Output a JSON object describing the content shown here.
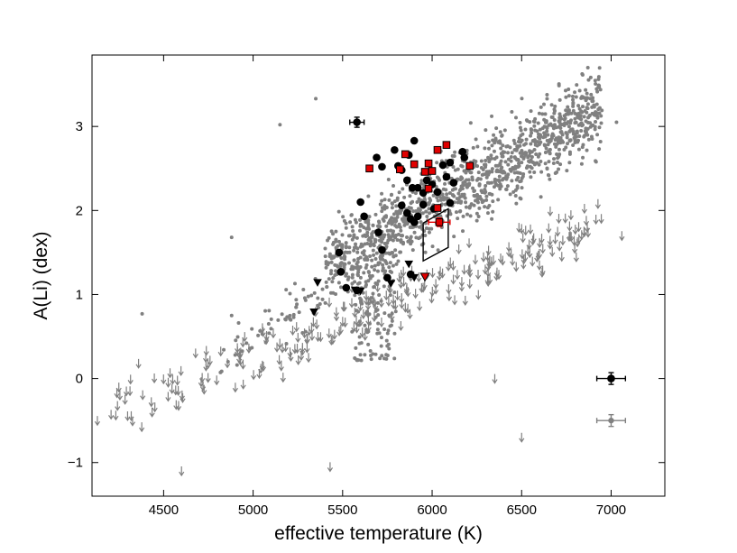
{
  "chart_data": {
    "type": "scatter",
    "title": "",
    "xlabel": "effective temperature (K)",
    "ylabel": "A(Li) (dex)",
    "xlim": [
      4100,
      7300
    ],
    "ylim": [
      -1.4,
      3.85
    ],
    "grid": false,
    "legend": "none",
    "xticks": [
      4500,
      5000,
      5500,
      6000,
      6500,
      7000
    ],
    "xtick_labels": [
      "4500",
      "5000",
      "5500",
      "6000",
      "6500",
      "7000"
    ],
    "yticks": [
      -1,
      0,
      1,
      2,
      3
    ],
    "ytick_labels": [
      "−1",
      "0",
      "1",
      "2",
      "3"
    ],
    "colors": {
      "field": "#808080",
      "black": "#000000",
      "red": "#e00000"
    },
    "series": [
      {
        "marker": "black-circle",
        "points": [
          [
            5690,
            2.63
          ],
          [
            5720,
            2.52
          ],
          [
            5790,
            2.72
          ],
          [
            5810,
            2.53
          ],
          [
            5830,
            2.48
          ],
          [
            5870,
            2.66
          ],
          [
            5900,
            2.83
          ],
          [
            5860,
            2.36
          ],
          [
            5890,
            2.27
          ],
          [
            5920,
            2.27
          ],
          [
            5950,
            2.21
          ],
          [
            5970,
            2.36
          ],
          [
            6000,
            2.31
          ],
          [
            6030,
            2.22
          ],
          [
            6060,
            2.54
          ],
          [
            6080,
            2.4
          ],
          [
            6100,
            2.57
          ],
          [
            6120,
            2.33
          ],
          [
            6180,
            2.63
          ],
          [
            6170,
            2.7
          ],
          [
            5600,
            2.1
          ],
          [
            5620,
            1.93
          ],
          [
            5700,
            1.74
          ],
          [
            5720,
            1.53
          ],
          [
            5830,
            2.06
          ],
          [
            5860,
            1.97
          ],
          [
            5880,
            1.9
          ],
          [
            5900,
            1.86
          ],
          [
            5920,
            1.93
          ],
          [
            5950,
            2.07
          ],
          [
            6010,
            2.02
          ],
          [
            6100,
            2.09
          ],
          [
            5480,
            1.5
          ],
          [
            5490,
            1.27
          ],
          [
            5520,
            1.08
          ],
          [
            5580,
            1.05
          ],
          [
            5750,
            1.2
          ],
          [
            5880,
            1.24
          ]
        ]
      },
      {
        "marker": "black-triangle-down",
        "points": [
          [
            5360,
            1.14
          ],
          [
            5340,
            0.79
          ],
          [
            5570,
            1.05
          ],
          [
            5600,
            1.04
          ],
          [
            5770,
            1.13
          ],
          [
            5870,
            1.36
          ],
          [
            5900,
            1.2
          ]
        ]
      },
      {
        "marker": "red-square",
        "points": [
          [
            5650,
            2.5
          ],
          [
            5850,
            2.67
          ],
          [
            5900,
            2.55
          ],
          [
            5820,
            2.49
          ],
          [
            5960,
            2.46
          ],
          [
            5980,
            2.56
          ],
          [
            6000,
            2.47
          ],
          [
            6030,
            2.72
          ],
          [
            6080,
            2.78
          ],
          [
            6210,
            2.53
          ],
          [
            5980,
            2.26
          ],
          [
            6030,
            2.03
          ]
        ]
      },
      {
        "marker": "red-triangle-down",
        "points": [
          [
            5960,
            1.21
          ]
        ]
      }
    ],
    "highlighted_point": {
      "x": 6040,
      "y": 1.86,
      "x_err": 60,
      "y_err": 0.05,
      "color": "#e00000",
      "marker": "square"
    },
    "outlier_point": {
      "x": 5580,
      "y": 3.05,
      "x_err": 40,
      "y_err": 0.06,
      "color": "#000000",
      "marker": "circle"
    },
    "polygon_box": [
      [
        5950,
        1.4
      ],
      [
        5950,
        1.85
      ],
      [
        6090,
        2.02
      ],
      [
        6090,
        1.56
      ]
    ],
    "error_reference": [
      {
        "x": 7000,
        "y": 0.0,
        "x_err": 80,
        "y_err": 0.07,
        "color": "#000000"
      },
      {
        "x": 7000,
        "y": -0.5,
        "x_err": 80,
        "y_err": 0.07,
        "color": "#808080"
      }
    ]
  }
}
